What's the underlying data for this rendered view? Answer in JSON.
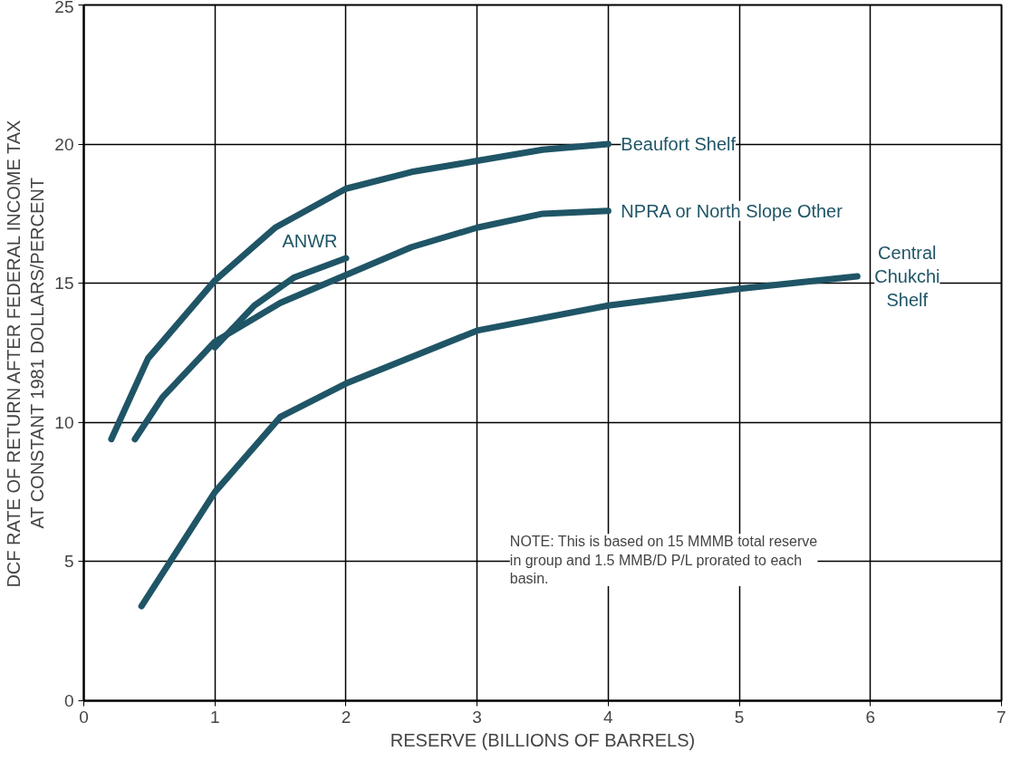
{
  "chart_data": {
    "type": "line",
    "xlabel": "RESERVE (BILLIONS OF BARRELS)",
    "ylabel": "DCF RATE OF RETURN AFTER FEDERAL INCOME TAX\nAT CONSTANT 1981 DOLLARS/PERCENT",
    "xlim": [
      0,
      7
    ],
    "ylim": [
      0,
      25
    ],
    "xticks": [
      0,
      1,
      2,
      3,
      4,
      5,
      6,
      7
    ],
    "yticks": [
      0,
      5,
      10,
      15,
      20,
      25
    ],
    "grid": true,
    "marker": "none",
    "line_style": "solid",
    "series": [
      {
        "name": "Beaufort Shelf",
        "color": "#1f5566",
        "x": [
          0.21,
          0.49,
          1,
          1.46,
          2,
          2.5,
          3,
          3.5,
          4
        ],
        "values": [
          9.4,
          12.3,
          15.1,
          17.0,
          18.4,
          19.0,
          19.4,
          19.8,
          20.0
        ]
      },
      {
        "name": "NPRA or North Slope Other",
        "color": "#1f5566",
        "x": [
          0.39,
          0.6,
          1,
          1.5,
          2,
          2.5,
          3,
          3.5,
          4
        ],
        "values": [
          9.4,
          10.9,
          12.9,
          14.3,
          15.3,
          16.3,
          17.0,
          17.5,
          17.6
        ]
      },
      {
        "name": "ANWR",
        "color": "#1f5566",
        "x": [
          1,
          1.3,
          1.6,
          2
        ],
        "values": [
          12.7,
          14.2,
          15.2,
          15.9
        ]
      },
      {
        "name": "Central Chukchi Shelf",
        "color": "#1f5566",
        "x": [
          0.44,
          1,
          1.5,
          2,
          3,
          4,
          5,
          5.9
        ],
        "values": [
          3.4,
          7.5,
          10.2,
          11.4,
          13.3,
          14.2,
          14.8,
          15.25
        ]
      }
    ],
    "annotations": [
      "NOTE: This is based on 15 MMMB total reserve in group and 1.5 MMB/D P/L prorated to each basin."
    ]
  }
}
